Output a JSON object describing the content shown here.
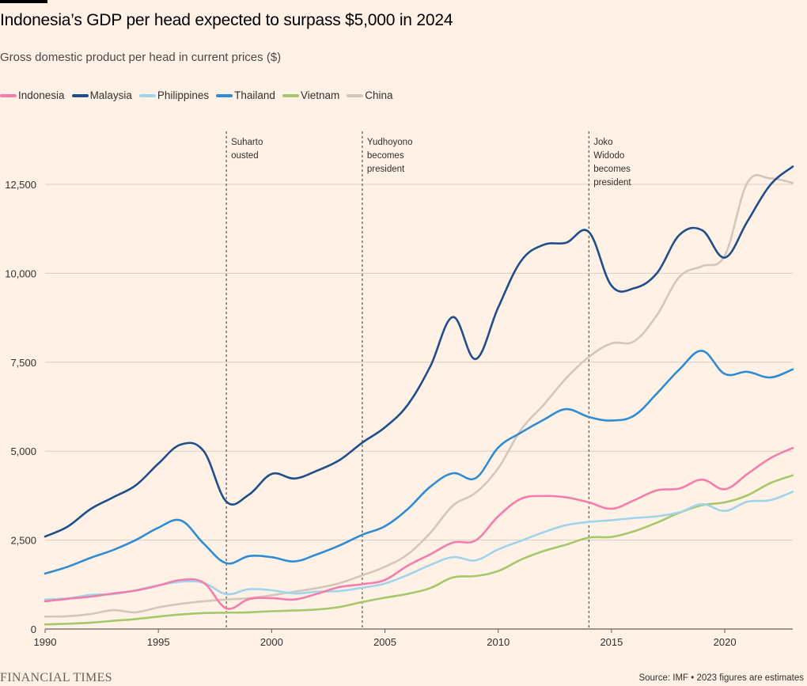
{
  "header": {
    "title": "Indonesia’s GDP per head expected to surpass $5,000 in 2024",
    "subtitle": "Gross domestic product per head in current prices ($)"
  },
  "footer": {
    "brand": "FINANCIAL TIMES",
    "source": "Source: IMF • 2023 figures are estimates"
  },
  "chart_data": {
    "type": "line",
    "x": [
      1990,
      1991,
      1992,
      1993,
      1994,
      1995,
      1996,
      1997,
      1998,
      1999,
      2000,
      2001,
      2002,
      2003,
      2004,
      2005,
      2006,
      2007,
      2008,
      2009,
      2010,
      2011,
      2012,
      2013,
      2014,
      2015,
      2016,
      2017,
      2018,
      2019,
      2020,
      2021,
      2022,
      2023
    ],
    "xlim": [
      1990,
      2023
    ],
    "ylim": [
      0,
      13000
    ],
    "x_ticks": [
      {
        "value": 1990,
        "label": "1990"
      },
      {
        "value": 1995,
        "label": "1995"
      },
      {
        "value": 2000,
        "label": "2000"
      },
      {
        "value": 2005,
        "label": "2005"
      },
      {
        "value": 2010,
        "label": "2010"
      },
      {
        "value": 2015,
        "label": "2015"
      },
      {
        "value": 2020,
        "label": "2020"
      }
    ],
    "y_ticks": [
      {
        "value": 0,
        "label": "0"
      },
      {
        "value": 2500,
        "label": "2,500"
      },
      {
        "value": 5000,
        "label": "5,000"
      },
      {
        "value": 7500,
        "label": "7,500"
      },
      {
        "value": 10000,
        "label": "10,000"
      },
      {
        "value": 12500,
        "label": "12,500"
      }
    ],
    "grid": true,
    "legend_position": "top-left",
    "series": [
      {
        "name": "China",
        "color": "#d2c7bd",
        "values": [
          350,
          360,
          420,
          530,
          470,
          610,
          710,
          780,
          830,
          870,
          950,
          1050,
          1150,
          1290,
          1510,
          1750,
          2100,
          2700,
          3470,
          3830,
          4520,
          5600,
          6300,
          7050,
          7650,
          8030,
          8090,
          8820,
          9900,
          10200,
          10500,
          12550,
          12670,
          12540
        ]
      },
      {
        "name": "Vietnam",
        "color": "#a5c96a",
        "values": [
          130,
          150,
          180,
          230,
          280,
          350,
          410,
          450,
          460,
          470,
          500,
          520,
          550,
          620,
          760,
          880,
          990,
          1150,
          1450,
          1490,
          1630,
          1950,
          2190,
          2370,
          2570,
          2590,
          2750,
          2990,
          3270,
          3480,
          3560,
          3760,
          4100,
          4320
        ]
      },
      {
        "name": "Philippines",
        "color": "#9fd4eb",
        "values": [
          830,
          860,
          960,
          980,
          1090,
          1230,
          1330,
          1300,
          980,
          1120,
          1090,
          1000,
          1050,
          1070,
          1160,
          1280,
          1520,
          1800,
          2020,
          1930,
          2240,
          2480,
          2720,
          2920,
          3010,
          3060,
          3120,
          3170,
          3280,
          3510,
          3320,
          3580,
          3620,
          3860
        ]
      },
      {
        "name": "Indonesia",
        "color": "#f47dab",
        "values": [
          780,
          850,
          910,
          1000,
          1080,
          1220,
          1380,
          1300,
          580,
          840,
          870,
          830,
          990,
          1180,
          1260,
          1380,
          1780,
          2100,
          2430,
          2490,
          3170,
          3660,
          3740,
          3700,
          3560,
          3380,
          3620,
          3900,
          3950,
          4200,
          3930,
          4360,
          4800,
          5090
        ]
      },
      {
        "name": "Thailand",
        "color": "#2f8cd2",
        "values": [
          1560,
          1750,
          2000,
          2220,
          2500,
          2850,
          3050,
          2400,
          1850,
          2050,
          2020,
          1900,
          2100,
          2350,
          2650,
          2890,
          3370,
          4000,
          4380,
          4240,
          5100,
          5520,
          5880,
          6180,
          5960,
          5860,
          6000,
          6620,
          7300,
          7820,
          7170,
          7230,
          7070,
          7300
        ]
      },
      {
        "name": "Malaysia",
        "color": "#1f4e8c",
        "values": [
          2600,
          2880,
          3370,
          3700,
          4040,
          4650,
          5190,
          5000,
          3580,
          3780,
          4360,
          4230,
          4450,
          4750,
          5240,
          5670,
          6300,
          7380,
          8770,
          7590,
          9040,
          10340,
          10800,
          10860,
          11160,
          9650,
          9580,
          10000,
          11080,
          11210,
          10440,
          11460,
          12480,
          13000
        ]
      }
    ],
    "legend_order": [
      "Indonesia",
      "Malaysia",
      "Philippines",
      "Thailand",
      "Vietnam",
      "China"
    ],
    "annotations": [
      {
        "x": 1998,
        "lines": [
          "Suharto",
          "ousted"
        ]
      },
      {
        "x": 2004,
        "lines": [
          "Yudhoyono",
          "becomes",
          "president"
        ]
      },
      {
        "x": 2014,
        "lines": [
          "Joko",
          "Widodo",
          "becomes",
          "president"
        ]
      }
    ]
  }
}
